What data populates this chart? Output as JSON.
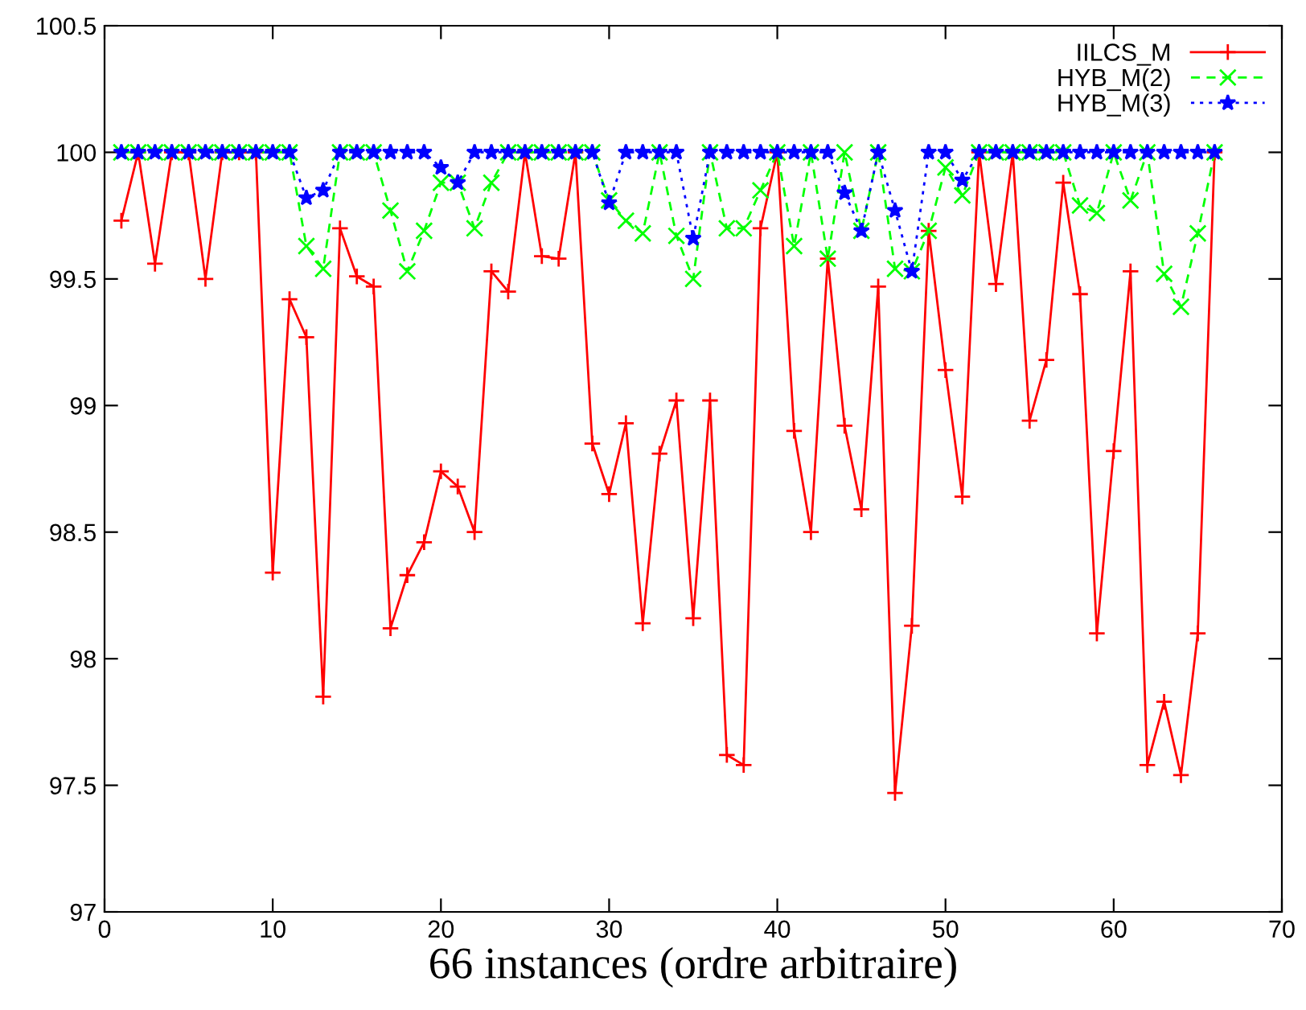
{
  "chart_data": {
    "type": "line",
    "xlabel": "66 instances (ordre arbitraire)",
    "x": [
      1,
      2,
      3,
      4,
      5,
      6,
      7,
      8,
      9,
      10,
      11,
      12,
      13,
      14,
      15,
      16,
      17,
      18,
      19,
      20,
      21,
      22,
      23,
      24,
      25,
      26,
      27,
      28,
      29,
      30,
      31,
      32,
      33,
      34,
      35,
      36,
      37,
      38,
      39,
      40,
      41,
      42,
      43,
      44,
      45,
      46,
      47,
      48,
      49,
      50,
      51,
      52,
      53,
      54,
      55,
      56,
      57,
      58,
      59,
      60,
      61,
      62,
      63,
      64,
      65,
      66
    ],
    "series": [
      {
        "name": "IILCS_M",
        "color": "#ff0000",
        "marker": "plus",
        "line_style": "solid",
        "values": [
          99.73,
          100,
          99.56,
          100,
          100,
          99.5,
          100,
          100,
          100,
          98.34,
          99.42,
          99.27,
          97.85,
          99.7,
          99.51,
          99.47,
          98.12,
          98.33,
          98.46,
          98.74,
          98.68,
          98.5,
          99.53,
          99.45,
          100,
          99.59,
          99.58,
          100,
          98.85,
          98.65,
          98.93,
          98.14,
          98.81,
          99.02,
          98.16,
          99.02,
          97.62,
          97.58,
          99.7,
          100,
          98.9,
          98.5,
          99.58,
          98.92,
          98.59,
          99.47,
          97.47,
          98.13,
          99.69,
          99.14,
          98.64,
          100,
          99.48,
          100,
          98.94,
          99.18,
          99.88,
          99.44,
          98.1,
          98.82,
          99.53,
          97.58,
          97.83,
          97.54,
          98.1,
          100
        ]
      },
      {
        "name": "HYB_M(2)",
        "color": "#00ff00",
        "marker": "cross",
        "line_style": "dashed",
        "values": [
          100,
          100,
          100,
          100,
          100,
          100,
          100,
          100,
          100,
          100,
          100,
          99.63,
          99.54,
          100,
          100,
          100,
          99.77,
          99.53,
          99.69,
          99.88,
          99.88,
          99.7,
          99.88,
          100,
          100,
          100,
          100,
          100,
          100,
          99.81,
          99.73,
          99.68,
          100,
          99.67,
          99.5,
          100,
          99.7,
          99.7,
          99.85,
          100,
          99.63,
          100,
          99.58,
          100,
          99.69,
          100,
          99.54,
          99.53,
          99.69,
          99.94,
          99.83,
          100,
          100,
          100,
          100,
          100,
          100,
          99.79,
          99.76,
          100,
          99.81,
          100,
          99.52,
          99.39,
          99.68,
          100
        ]
      },
      {
        "name": "HYB_M(3)",
        "color": "#0000ff",
        "marker": "star",
        "line_style": "dotted",
        "values": [
          100,
          100,
          100,
          100,
          100,
          100,
          100,
          100,
          100,
          100,
          100,
          99.82,
          99.85,
          100,
          100,
          100,
          100,
          100,
          100,
          99.94,
          99.88,
          100,
          100,
          100,
          100,
          100,
          100,
          100,
          100,
          99.8,
          100,
          100,
          100,
          100,
          99.66,
          100,
          100,
          100,
          100,
          100,
          100,
          100,
          100,
          99.84,
          99.69,
          100,
          99.77,
          99.53,
          100,
          100,
          99.89,
          100,
          100,
          100,
          100,
          100,
          100,
          100,
          100,
          100,
          100,
          100,
          100,
          100,
          100,
          100
        ]
      }
    ],
    "xlim": [
      0,
      70
    ],
    "xticks": [
      0,
      10,
      20,
      30,
      40,
      50,
      60,
      70
    ],
    "ylim": [
      97,
      100.5
    ],
    "yticks": [
      97,
      97.5,
      98,
      98.5,
      99,
      99.5,
      100,
      100.5
    ],
    "legend": "top right"
  }
}
